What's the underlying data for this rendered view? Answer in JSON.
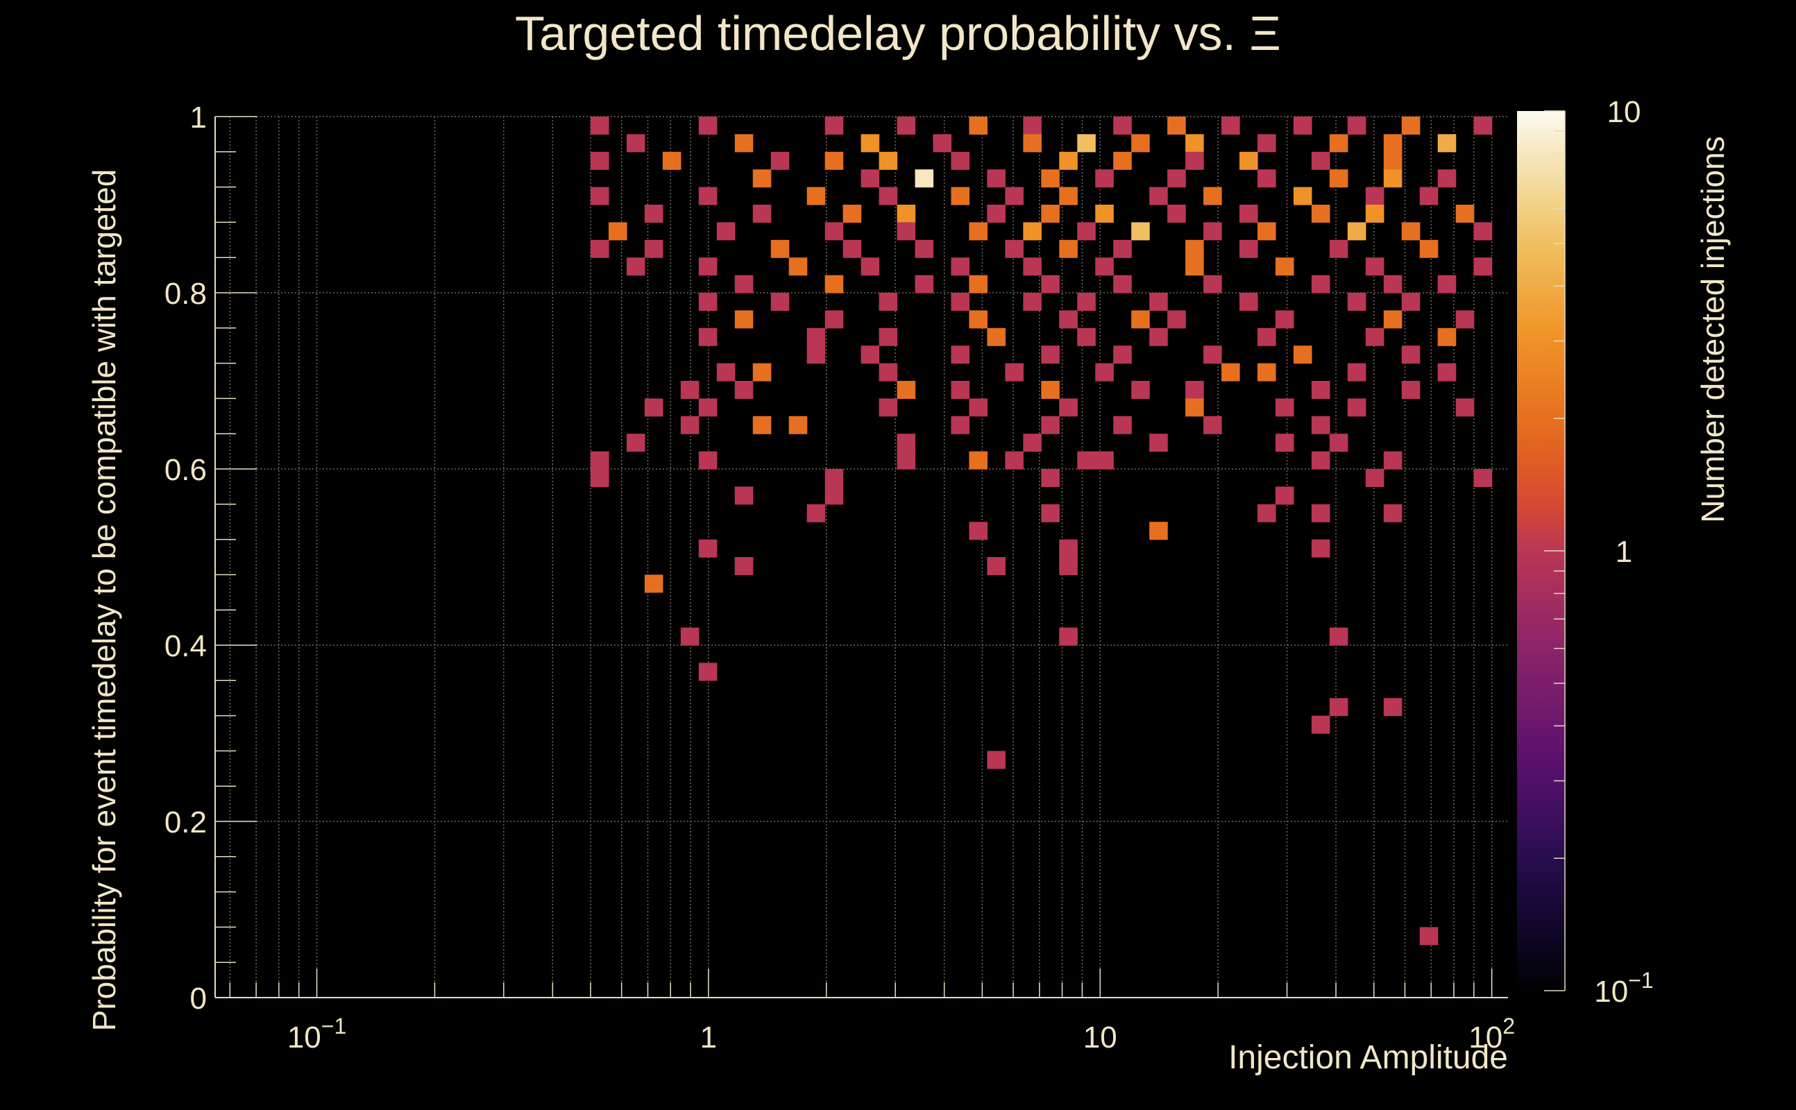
{
  "chart_data": {
    "type": "heatmap",
    "title": "Targeted timedelay probability vs.  Ξ",
    "xlabel": "Injection Amplitude",
    "ylabel": "Probability for event timedelay to be compatible with targeted",
    "zlabel": "Number detected injections",
    "x_scale": "log",
    "z_scale": "log",
    "xlim": [
      0.055,
      110
    ],
    "ylim": [
      0,
      1
    ],
    "zlim": [
      0.1,
      10
    ],
    "x_tick_labels": [
      "10^-1",
      "1",
      "10",
      "10^2"
    ],
    "y_tick_labels": [
      "0",
      "0.2",
      "0.4",
      "0.6",
      "0.8",
      "1"
    ],
    "z_tick_labels": [
      "10^-1",
      "1",
      "10"
    ],
    "grid": true,
    "colormap": "inferno",
    "x_bins": 50,
    "y_bins": 50,
    "x_bin_edges_range": [
      0.5,
      100
    ],
    "cells": [
      [
        0.52,
        0.99,
        1
      ],
      [
        1.0,
        0.99,
        1
      ],
      [
        2.1,
        0.99,
        1
      ],
      [
        3.2,
        0.99,
        1
      ],
      [
        5.0,
        0.99,
        2
      ],
      [
        7.0,
        0.99,
        1
      ],
      [
        11.0,
        0.99,
        1
      ],
      [
        15.0,
        0.99,
        2
      ],
      [
        22.0,
        0.99,
        1
      ],
      [
        32.0,
        0.99,
        1
      ],
      [
        45.0,
        0.99,
        1
      ],
      [
        65.0,
        0.99,
        2
      ],
      [
        90.0,
        0.99,
        1
      ],
      [
        0.65,
        0.97,
        1
      ],
      [
        1.2,
        0.97,
        2
      ],
      [
        2.5,
        0.97,
        3
      ],
      [
        4.0,
        0.97,
        1
      ],
      [
        6.5,
        0.97,
        2
      ],
      [
        9.5,
        0.97,
        5
      ],
      [
        13.0,
        0.97,
        2
      ],
      [
        18.0,
        0.97,
        3
      ],
      [
        26.0,
        0.97,
        1
      ],
      [
        40.0,
        0.97,
        2
      ],
      [
        58.0,
        0.97,
        2
      ],
      [
        80.0,
        0.97,
        4
      ],
      [
        0.55,
        0.95,
        1
      ],
      [
        0.8,
        0.95,
        2
      ],
      [
        1.6,
        0.95,
        1
      ],
      [
        2.2,
        0.95,
        2
      ],
      [
        3.0,
        0.95,
        3
      ],
      [
        4.5,
        0.95,
        1
      ],
      [
        8.0,
        0.95,
        3
      ],
      [
        12.0,
        0.95,
        2
      ],
      [
        17.0,
        0.95,
        1
      ],
      [
        23.0,
        0.95,
        3
      ],
      [
        35.0,
        0.95,
        1
      ],
      [
        55.0,
        0.95,
        2
      ],
      [
        1.4,
        0.93,
        2
      ],
      [
        2.6,
        0.93,
        1
      ],
      [
        3.5,
        0.93,
        8
      ],
      [
        5.5,
        0.93,
        1
      ],
      [
        7.5,
        0.93,
        2
      ],
      [
        10.0,
        0.93,
        1
      ],
      [
        16.0,
        0.93,
        1
      ],
      [
        28.0,
        0.93,
        1
      ],
      [
        42.0,
        0.93,
        2
      ],
      [
        56.0,
        0.93,
        3
      ],
      [
        75.0,
        0.93,
        1
      ],
      [
        0.55,
        0.91,
        1
      ],
      [
        1.0,
        0.91,
        1
      ],
      [
        1.9,
        0.91,
        2
      ],
      [
        2.8,
        0.91,
        1
      ],
      [
        4.3,
        0.91,
        2
      ],
      [
        6.0,
        0.91,
        1
      ],
      [
        8.5,
        0.91,
        2
      ],
      [
        14.0,
        0.91,
        1
      ],
      [
        20.0,
        0.91,
        2
      ],
      [
        33.0,
        0.91,
        3
      ],
      [
        48.0,
        0.91,
        1
      ],
      [
        70.0,
        0.91,
        1
      ],
      [
        0.75,
        0.89,
        1
      ],
      [
        1.3,
        0.89,
        1
      ],
      [
        2.4,
        0.89,
        2
      ],
      [
        3.3,
        0.89,
        3
      ],
      [
        5.2,
        0.89,
        1
      ],
      [
        7.8,
        0.89,
        2
      ],
      [
        10.5,
        0.89,
        3
      ],
      [
        15.0,
        0.89,
        1
      ],
      [
        24.0,
        0.89,
        1
      ],
      [
        38.0,
        0.89,
        2
      ],
      [
        52.0,
        0.89,
        3
      ],
      [
        85.0,
        0.89,
        2
      ],
      [
        0.6,
        0.87,
        2
      ],
      [
        1.1,
        0.87,
        1
      ],
      [
        2.0,
        0.87,
        1
      ],
      [
        3.1,
        0.87,
        1
      ],
      [
        4.8,
        0.87,
        2
      ],
      [
        6.8,
        0.87,
        3
      ],
      [
        9.0,
        0.87,
        1
      ],
      [
        13.0,
        0.87,
        5
      ],
      [
        19.0,
        0.87,
        1
      ],
      [
        28.0,
        0.87,
        2
      ],
      [
        44.0,
        0.87,
        4
      ],
      [
        60.0,
        0.87,
        2
      ],
      [
        90.0,
        0.87,
        1
      ],
      [
        0.52,
        0.85,
        1
      ],
      [
        0.72,
        0.85,
        1
      ],
      [
        1.5,
        0.85,
        2
      ],
      [
        2.3,
        0.85,
        1
      ],
      [
        3.6,
        0.85,
        1
      ],
      [
        5.8,
        0.85,
        1
      ],
      [
        8.0,
        0.85,
        2
      ],
      [
        11.5,
        0.85,
        1
      ],
      [
        17.0,
        0.85,
        2
      ],
      [
        25.0,
        0.85,
        1
      ],
      [
        40.0,
        0.85,
        1
      ],
      [
        70.0,
        0.85,
        2
      ],
      [
        0.65,
        0.83,
        1
      ],
      [
        1.0,
        0.83,
        1
      ],
      [
        1.7,
        0.83,
        2
      ],
      [
        2.7,
        0.83,
        1
      ],
      [
        4.2,
        0.83,
        1
      ],
      [
        7.0,
        0.83,
        1
      ],
      [
        10.0,
        0.83,
        1
      ],
      [
        18.0,
        0.83,
        2
      ],
      [
        30.0,
        0.83,
        2
      ],
      [
        50.0,
        0.83,
        1
      ],
      [
        95.0,
        0.83,
        1
      ],
      [
        1.2,
        0.81,
        1
      ],
      [
        2.1,
        0.81,
        2
      ],
      [
        3.5,
        0.81,
        1
      ],
      [
        5.0,
        0.81,
        2
      ],
      [
        7.3,
        0.81,
        1
      ],
      [
        11.0,
        0.81,
        1
      ],
      [
        20.0,
        0.81,
        1
      ],
      [
        35.0,
        0.81,
        1
      ],
      [
        58.0,
        0.81,
        1
      ],
      [
        80.0,
        0.81,
        1
      ],
      [
        1.0,
        0.79,
        1
      ],
      [
        1.6,
        0.79,
        1
      ],
      [
        2.9,
        0.79,
        1
      ],
      [
        4.6,
        0.79,
        1
      ],
      [
        6.5,
        0.79,
        1
      ],
      [
        9.5,
        0.79,
        1
      ],
      [
        13.5,
        0.79,
        1
      ],
      [
        23.0,
        0.79,
        1
      ],
      [
        44.0,
        0.79,
        1
      ],
      [
        62.0,
        0.79,
        1
      ],
      [
        1.2,
        0.77,
        2
      ],
      [
        2.2,
        0.77,
        1
      ],
      [
        4.8,
        0.77,
        2
      ],
      [
        8.2,
        0.77,
        1
      ],
      [
        12.5,
        0.77,
        2
      ],
      [
        16.0,
        0.77,
        1
      ],
      [
        30.0,
        0.77,
        1
      ],
      [
        55.0,
        0.77,
        2
      ],
      [
        88.0,
        0.77,
        1
      ],
      [
        1.0,
        0.75,
        1
      ],
      [
        1.8,
        0.75,
        1
      ],
      [
        3.0,
        0.75,
        1
      ],
      [
        5.4,
        0.75,
        2
      ],
      [
        9.0,
        0.75,
        1
      ],
      [
        14.0,
        0.75,
        1
      ],
      [
        26.0,
        0.75,
        1
      ],
      [
        48.0,
        0.75,
        1
      ],
      [
        75.0,
        0.75,
        2
      ],
      [
        1.9,
        0.73,
        1
      ],
      [
        2.6,
        0.73,
        1
      ],
      [
        4.2,
        0.73,
        1
      ],
      [
        7.1,
        0.73,
        1
      ],
      [
        11.0,
        0.73,
        1
      ],
      [
        19.5,
        0.73,
        1
      ],
      [
        33.0,
        0.73,
        2
      ],
      [
        64.0,
        0.73,
        1
      ],
      [
        1.1,
        0.71,
        1
      ],
      [
        1.4,
        0.71,
        2
      ],
      [
        2.9,
        0.71,
        1
      ],
      [
        6.3,
        0.71,
        1
      ],
      [
        10.5,
        0.71,
        1
      ],
      [
        22.0,
        0.71,
        2
      ],
      [
        28.0,
        0.71,
        2
      ],
      [
        43.0,
        0.71,
        1
      ],
      [
        78.0,
        0.71,
        1
      ],
      [
        0.85,
        0.69,
        1
      ],
      [
        1.2,
        0.69,
        1
      ],
      [
        3.2,
        0.69,
        2
      ],
      [
        4.6,
        0.69,
        1
      ],
      [
        7.5,
        0.69,
        2
      ],
      [
        13.0,
        0.69,
        1
      ],
      [
        18.0,
        0.69,
        1
      ],
      [
        38.0,
        0.69,
        1
      ],
      [
        60.0,
        0.69,
        1
      ],
      [
        0.72,
        0.67,
        1
      ],
      [
        1.0,
        0.67,
        1
      ],
      [
        3.0,
        0.67,
        1
      ],
      [
        4.8,
        0.67,
        1
      ],
      [
        8.5,
        0.67,
        1
      ],
      [
        17.0,
        0.67,
        2
      ],
      [
        31.0,
        0.67,
        1
      ],
      [
        44.0,
        0.67,
        1
      ],
      [
        85.0,
        0.67,
        1
      ],
      [
        0.9,
        0.65,
        1
      ],
      [
        1.35,
        0.65,
        2
      ],
      [
        1.7,
        0.65,
        2
      ],
      [
        4.4,
        0.65,
        1
      ],
      [
        7.8,
        0.65,
        1
      ],
      [
        12.0,
        0.65,
        1
      ],
      [
        19.0,
        0.65,
        1
      ],
      [
        36.0,
        0.65,
        1
      ],
      [
        0.62,
        0.63,
        1
      ],
      [
        3.1,
        0.63,
        1
      ],
      [
        6.9,
        0.63,
        1
      ],
      [
        14.5,
        0.63,
        1
      ],
      [
        31.0,
        0.63,
        1
      ],
      [
        40.0,
        0.63,
        1
      ],
      [
        0.55,
        0.61,
        1
      ],
      [
        1.0,
        0.61,
        1
      ],
      [
        3.1,
        0.61,
        1
      ],
      [
        5.0,
        0.61,
        2
      ],
      [
        6.2,
        0.61,
        1
      ],
      [
        8.8,
        0.61,
        1
      ],
      [
        10.0,
        0.61,
        1
      ],
      [
        35.0,
        0.61,
        1
      ],
      [
        58.0,
        0.61,
        1
      ],
      [
        0.55,
        0.59,
        1
      ],
      [
        2.1,
        0.59,
        1
      ],
      [
        7.5,
        0.59,
        1
      ],
      [
        48.0,
        0.59,
        1
      ],
      [
        98.0,
        0.59,
        1
      ],
      [
        1.2,
        0.57,
        1
      ],
      [
        2.1,
        0.57,
        1
      ],
      [
        31.0,
        0.57,
        1
      ],
      [
        1.8,
        0.55,
        1
      ],
      [
        7.5,
        0.55,
        1
      ],
      [
        26.0,
        0.55,
        1
      ],
      [
        36.0,
        0.55,
        1
      ],
      [
        56.0,
        0.55,
        1
      ],
      [
        4.8,
        0.53,
        1
      ],
      [
        13.5,
        0.53,
        2
      ],
      [
        1.0,
        0.51,
        1
      ],
      [
        8.5,
        0.51,
        1
      ],
      [
        35.0,
        0.51,
        1
      ],
      [
        1.2,
        0.49,
        1
      ],
      [
        5.6,
        0.49,
        1
      ],
      [
        8.5,
        0.49,
        1
      ],
      [
        0.72,
        0.47,
        2
      ],
      [
        0.85,
        0.41,
        1
      ],
      [
        8.5,
        0.41,
        1
      ],
      [
        42.0,
        0.41,
        1
      ],
      [
        1.0,
        0.37,
        1
      ],
      [
        42.0,
        0.33,
        1
      ],
      [
        56.0,
        0.33,
        1
      ],
      [
        36.0,
        0.31,
        1
      ],
      [
        5.6,
        0.27,
        1
      ],
      [
        66.0,
        0.07,
        1
      ]
    ]
  }
}
